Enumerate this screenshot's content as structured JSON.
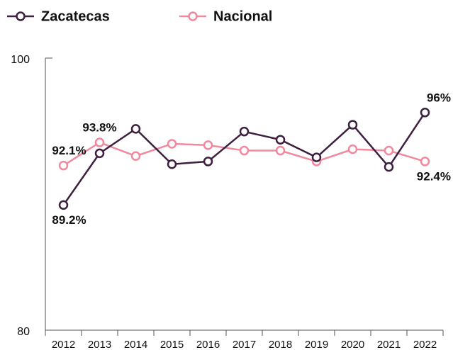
{
  "chart_data": {
    "type": "line",
    "categories": [
      "2012",
      "2013",
      "2014",
      "2015",
      "2016",
      "2017",
      "2018",
      "2019",
      "2020",
      "2021",
      "2022"
    ],
    "series": [
      {
        "name": "Zacatecas",
        "color": "#3d2040",
        "values": [
          89.2,
          93.0,
          94.8,
          92.2,
          92.4,
          94.6,
          94.0,
          92.7,
          95.1,
          92.0,
          96.0
        ],
        "value_labels": [
          "89.2%",
          null,
          null,
          null,
          null,
          null,
          null,
          null,
          null,
          null,
          "96%"
        ]
      },
      {
        "name": "Nacional",
        "color": "#f0899e",
        "values": [
          92.1,
          93.8,
          92.8,
          93.7,
          93.6,
          93.2,
          93.2,
          92.4,
          93.3,
          93.2,
          92.4
        ],
        "value_labels": [
          "92.1%",
          "93.8%",
          null,
          null,
          null,
          null,
          null,
          null,
          null,
          null,
          "92.4%"
        ]
      }
    ],
    "ylim": [
      80,
      100
    ],
    "yticks": [
      80,
      100
    ],
    "grid": false,
    "legend": "top-left"
  }
}
